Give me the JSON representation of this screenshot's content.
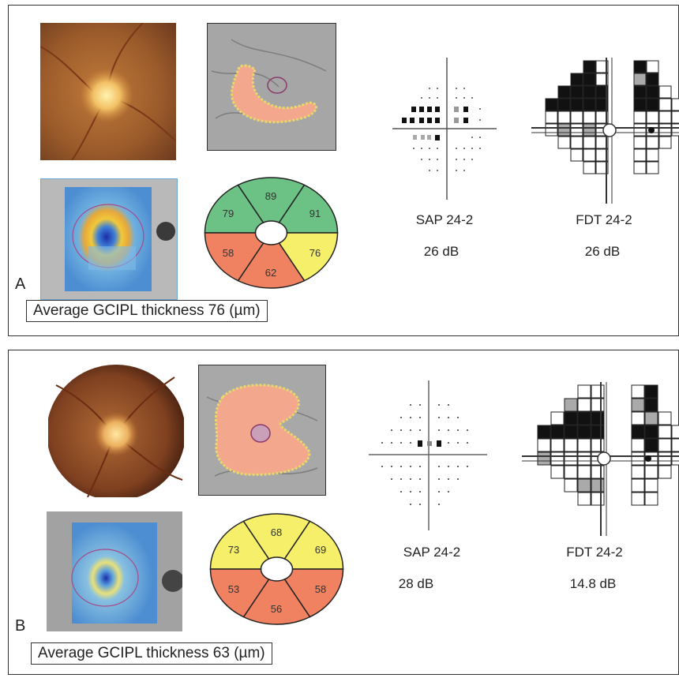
{
  "panels": [
    {
      "letter": "A",
      "sectors": {
        "superior": "89",
        "superonasal": "91",
        "superotemporal": "79",
        "inferotemporal": "58",
        "inferior": "62",
        "inferonasal": "76"
      },
      "sector_colors": {
        "superior": "#6cc184",
        "superonasal": "#6cc184",
        "superotemporal": "#6cc184",
        "inferotemporal": "#f08262",
        "inferior": "#f08262",
        "inferonasal": "#f5ef6a"
      },
      "sap_label": "SAP 24-2",
      "sap_value": "26 dB",
      "fdt_label": "FDT 24-2",
      "fdt_value": "26 dB",
      "caption": "Average  GCIPL thickness  76 (µm)"
    },
    {
      "letter": "B",
      "sectors": {
        "superior": "68",
        "superonasal": "69",
        "superotemporal": "73",
        "inferotemporal": "53",
        "inferior": "56",
        "inferonasal": "58"
      },
      "sector_colors": {
        "superior": "#f5ef6a",
        "superonasal": "#f5ef6a",
        "superotemporal": "#f5ef6a",
        "inferotemporal": "#f08262",
        "inferior": "#f08262",
        "inferonasal": "#f08262"
      },
      "sap_label": "SAP 24-2",
      "sap_value": "28 dB",
      "fdt_label": "FDT 24-2",
      "fdt_value": "14.8 dB",
      "caption": "Average GCIPL thickness  63 (µm)"
    }
  ]
}
